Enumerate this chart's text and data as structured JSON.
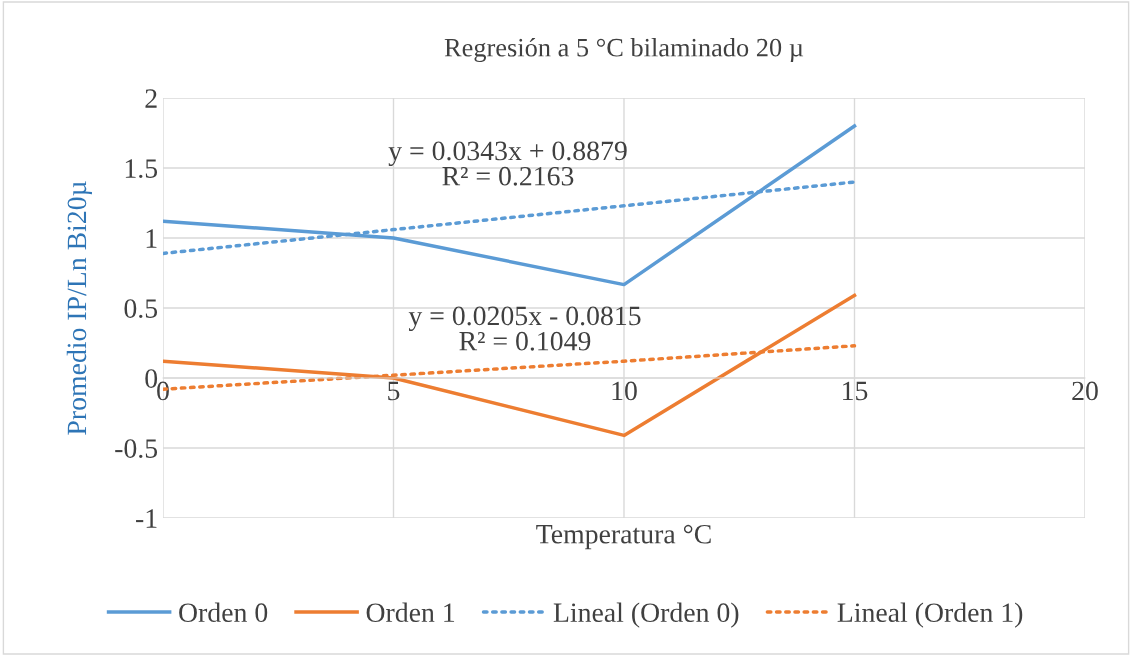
{
  "chart_data": {
    "type": "line",
    "title": "Regresión a 5 °C bilaminado 20 µ",
    "xlabel": "Temperatura °C",
    "ylabel": "Promedio IP/Ln Bi20µ",
    "x": [
      0,
      5,
      10,
      15
    ],
    "series": [
      {
        "name": "Orden 0",
        "color": "#5b9bd5",
        "values": [
          1.12,
          1.0,
          0.667,
          1.8
        ],
        "line_style": "solid"
      },
      {
        "name": "Orden 1",
        "color": "#ed7d31",
        "values": [
          0.12,
          0.0,
          -0.41,
          0.59
        ],
        "line_style": "solid"
      },
      {
        "name": "Lineal (Orden 0)",
        "color": "#5b9bd5",
        "values": [
          0.89,
          1.06,
          1.23,
          1.4
        ],
        "line_style": "dotted"
      },
      {
        "name": "Lineal (Orden 1)",
        "color": "#ed7d31",
        "values": [
          -0.08,
          0.02,
          0.12,
          0.23
        ],
        "line_style": "dotted"
      }
    ],
    "annotations": [
      "y = 0.0343x + 0.8879\nR² = 0.2163",
      "y = 0.0205x - 0.0815\nR² = 0.1049"
    ],
    "xlim": [
      0,
      20
    ],
    "xticks": [
      0,
      5,
      10,
      15,
      20
    ],
    "ylim": [
      -1,
      2
    ],
    "yticks": [
      -1,
      -0.5,
      0,
      0.5,
      1,
      1.5,
      2
    ],
    "grid": true,
    "legend": "bottom",
    "marker": "none"
  }
}
